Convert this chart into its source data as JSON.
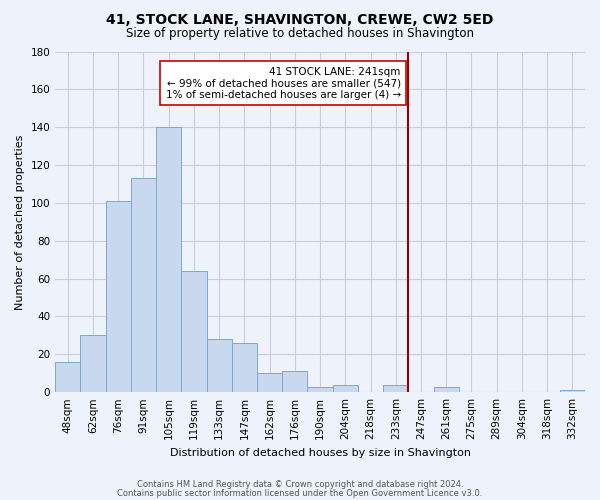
{
  "title": "41, STOCK LANE, SHAVINGTON, CREWE, CW2 5ED",
  "subtitle": "Size of property relative to detached houses in Shavington",
  "xlabel": "Distribution of detached houses by size in Shavington",
  "ylabel": "Number of detached properties",
  "bar_labels": [
    "48sqm",
    "62sqm",
    "76sqm",
    "91sqm",
    "105sqm",
    "119sqm",
    "133sqm",
    "147sqm",
    "162sqm",
    "176sqm",
    "190sqm",
    "204sqm",
    "218sqm",
    "233sqm",
    "247sqm",
    "261sqm",
    "275sqm",
    "289sqm",
    "304sqm",
    "318sqm",
    "332sqm"
  ],
  "bar_heights": [
    16,
    30,
    101,
    113,
    140,
    64,
    28,
    26,
    10,
    11,
    3,
    4,
    0,
    4,
    0,
    3,
    0,
    0,
    0,
    0,
    1
  ],
  "bar_color": "#c8d8ee",
  "bar_edge_color": "#7aaad0",
  "ylim": [
    0,
    180
  ],
  "yticks": [
    0,
    20,
    40,
    60,
    80,
    100,
    120,
    140,
    160,
    180
  ],
  "vline_x_index": 14,
  "vline_color": "#990000",
  "annotation_title": "41 STOCK LANE: 241sqm",
  "annotation_line1": "← 99% of detached houses are smaller (547)",
  "annotation_line2": "1% of semi-detached houses are larger (4) →",
  "footer_line1": "Contains HM Land Registry data © Crown copyright and database right 2024.",
  "footer_line2": "Contains public sector information licensed under the Open Government Licence v3.0.",
  "bg_color_left": "#f8f8ff",
  "bg_color_right": "#e8eef8",
  "grid_color": "#ccccdd",
  "annotation_box_color": "#ffffff",
  "annotation_box_edge": "#cc0000",
  "title_fontsize": 10,
  "subtitle_fontsize": 8.5,
  "axis_label_fontsize": 8,
  "tick_fontsize": 7.5,
  "footer_fontsize": 6.0
}
